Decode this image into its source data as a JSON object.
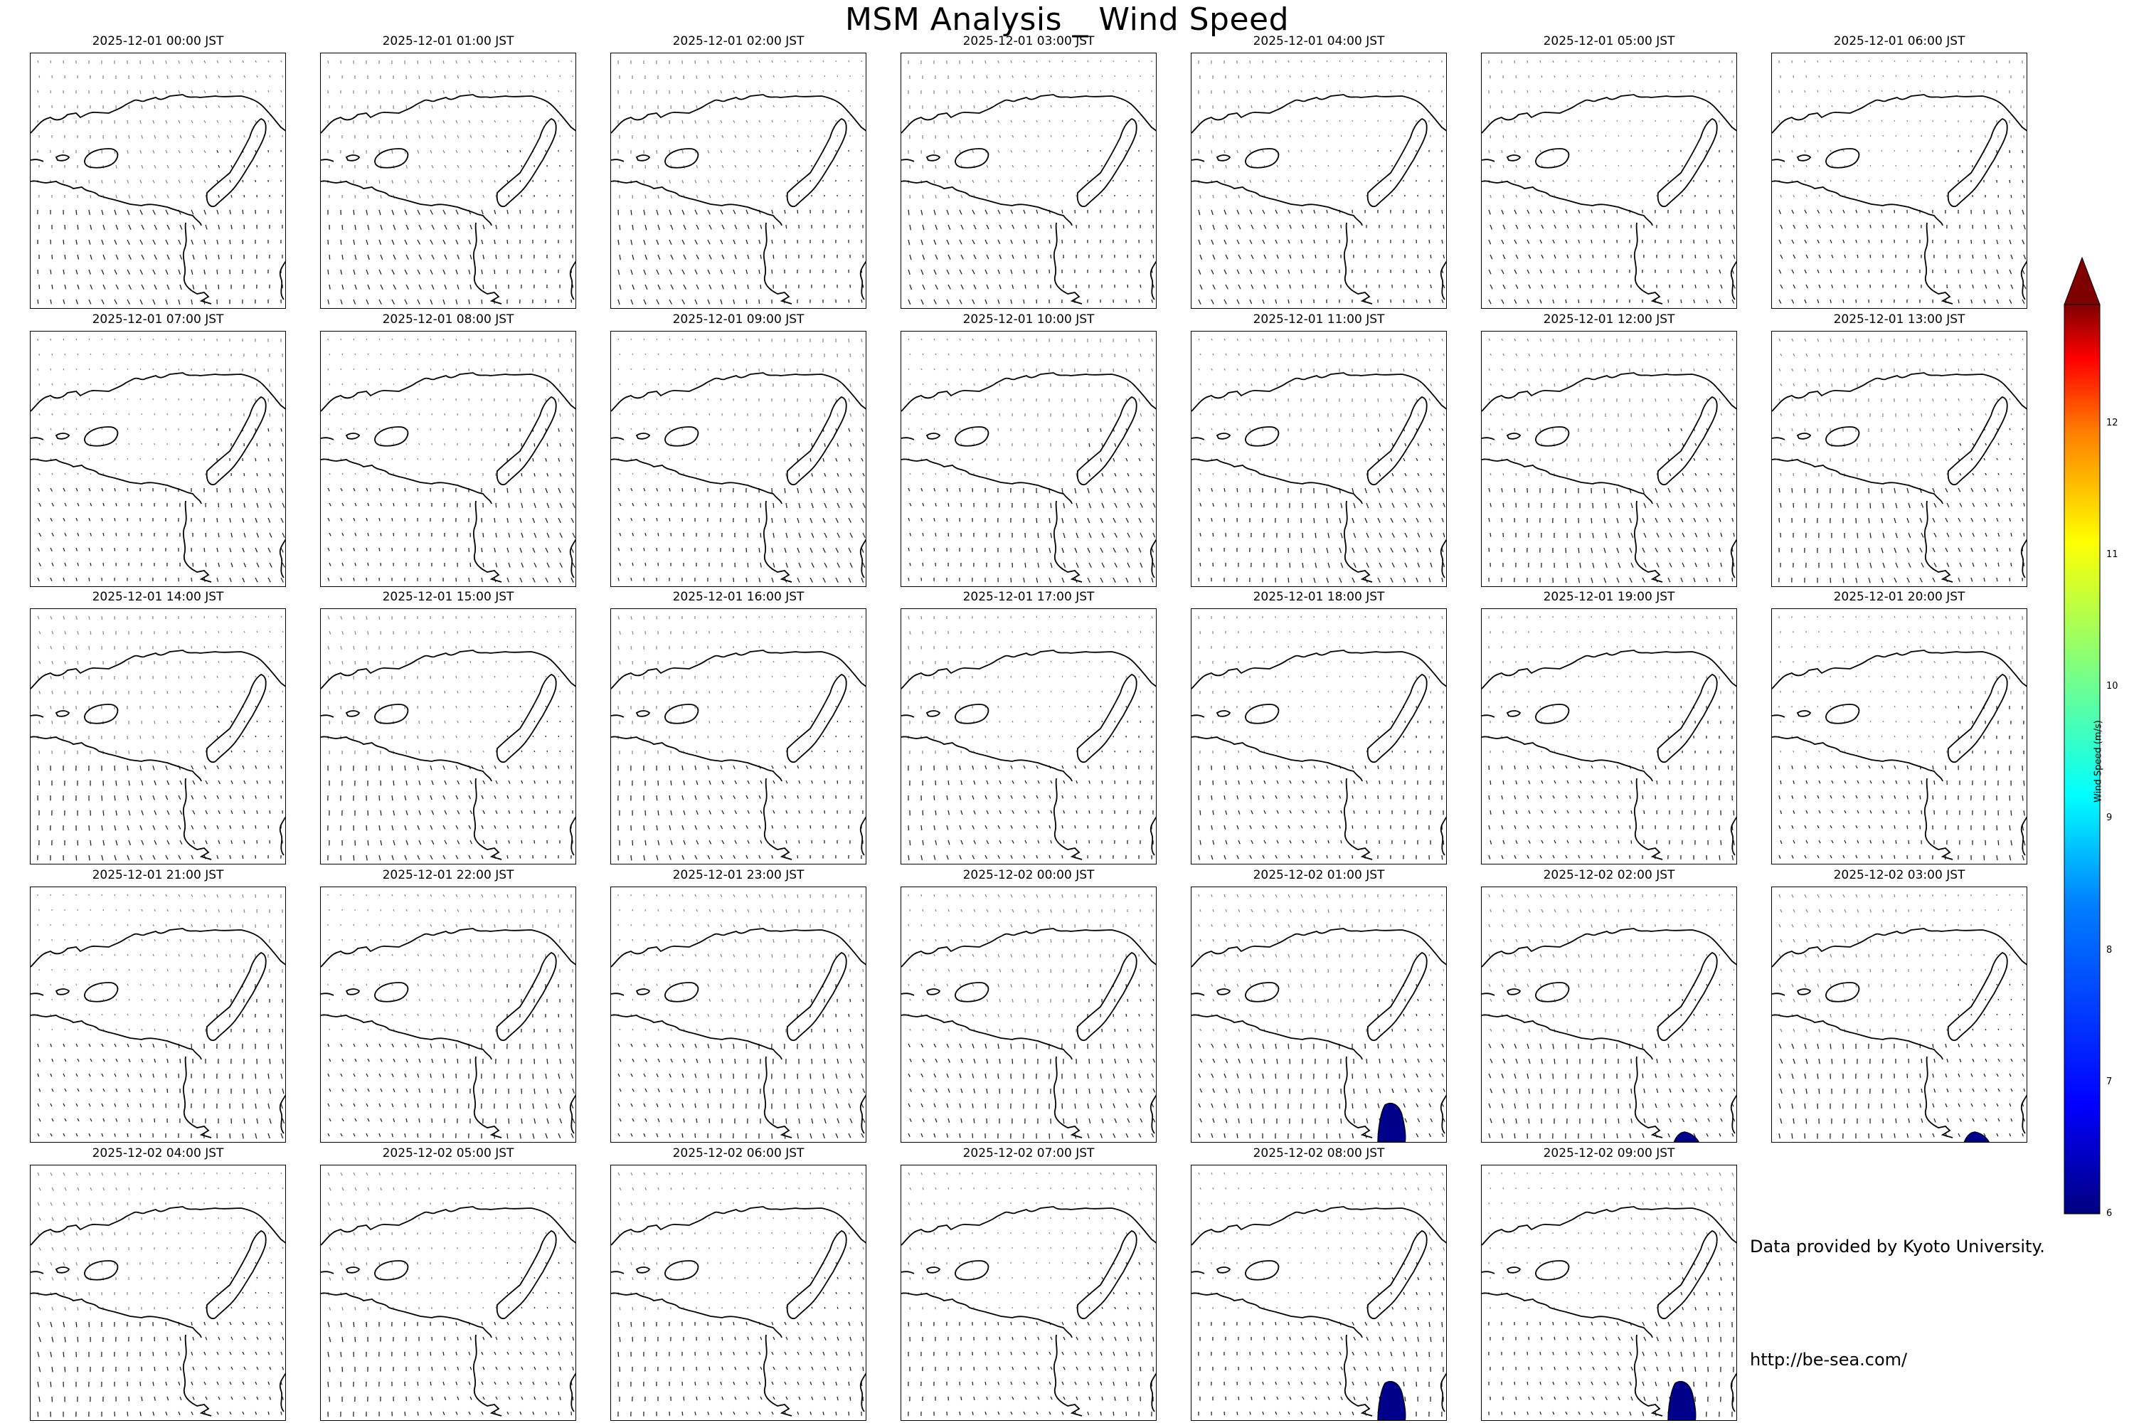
{
  "title": "MSM Analysis _ Wind Speed",
  "panels": [
    {
      "time": "2025-12-01 00:00 JST"
    },
    {
      "time": "2025-12-01 01:00 JST"
    },
    {
      "time": "2025-12-01 02:00 JST"
    },
    {
      "time": "2025-12-01 03:00 JST"
    },
    {
      "time": "2025-12-01 04:00 JST"
    },
    {
      "time": "2025-12-01 05:00 JST"
    },
    {
      "time": "2025-12-01 06:00 JST"
    },
    {
      "time": "2025-12-01 07:00 JST"
    },
    {
      "time": "2025-12-01 08:00 JST"
    },
    {
      "time": "2025-12-01 09:00 JST"
    },
    {
      "time": "2025-12-01 10:00 JST"
    },
    {
      "time": "2025-12-01 11:00 JST"
    },
    {
      "time": "2025-12-01 12:00 JST"
    },
    {
      "time": "2025-12-01 13:00 JST"
    },
    {
      "time": "2025-12-01 14:00 JST"
    },
    {
      "time": "2025-12-01 15:00 JST"
    },
    {
      "time": "2025-12-01 16:00 JST"
    },
    {
      "time": "2025-12-01 17:00 JST"
    },
    {
      "time": "2025-12-01 18:00 JST"
    },
    {
      "time": "2025-12-01 19:00 JST"
    },
    {
      "time": "2025-12-01 20:00 JST"
    },
    {
      "time": "2025-12-01 21:00 JST"
    },
    {
      "time": "2025-12-01 22:00 JST"
    },
    {
      "time": "2025-12-01 23:00 JST"
    },
    {
      "time": "2025-12-02 00:00 JST"
    },
    {
      "time": "2025-12-02 01:00 JST",
      "high_wind_patch": "large"
    },
    {
      "time": "2025-12-02 02:00 JST",
      "high_wind_patch": "small"
    },
    {
      "time": "2025-12-02 03:00 JST",
      "high_wind_patch": "small"
    },
    {
      "time": "2025-12-02 04:00 JST"
    },
    {
      "time": "2025-12-02 05:00 JST"
    },
    {
      "time": "2025-12-02 06:00 JST"
    },
    {
      "time": "2025-12-02 07:00 JST"
    },
    {
      "time": "2025-12-02 08:00 JST",
      "high_wind_patch": "large"
    },
    {
      "time": "2025-12-02 09:00 JST",
      "high_wind_patch": "large"
    }
  ],
  "colorbar": {
    "label": "Wind Speed (m/s)",
    "ticks": [
      "6",
      "7",
      "8",
      "9",
      "10",
      "11",
      "12"
    ],
    "min": 6,
    "max": 12.9,
    "extend": "max",
    "colormap": [
      "#00007f",
      "#0000ff",
      "#007fff",
      "#00ffff",
      "#7fff7f",
      "#ffff00",
      "#ff7f00",
      "#ff0000",
      "#7f0000"
    ]
  },
  "patch_color": "#00008b",
  "credits": {
    "source": "Data provided by Kyoto University.",
    "url": "http://be-sea.com/"
  }
}
